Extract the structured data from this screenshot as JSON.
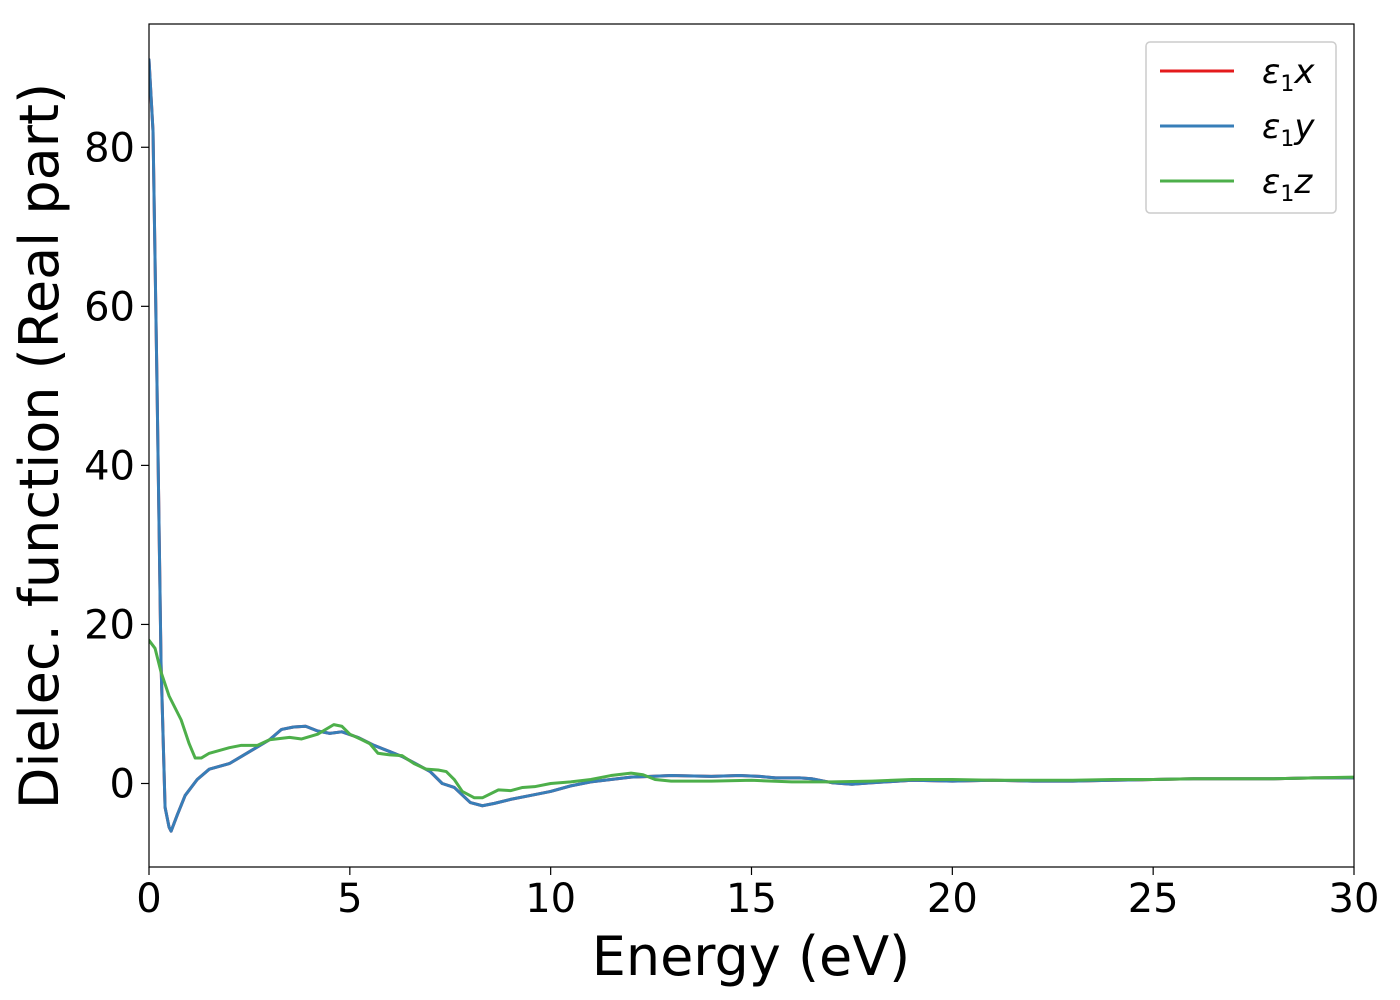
{
  "chart_data": {
    "type": "line",
    "xlabel": "Energy (eV)",
    "ylabel": "Dielec. function (Real part)",
    "xlim": [
      0,
      30
    ],
    "ylim": [
      -10.5,
      95.5
    ],
    "xticks": [
      0,
      5,
      10,
      15,
      20,
      25,
      30
    ],
    "yticks": [
      0,
      20,
      40,
      60,
      80
    ],
    "grid": false,
    "legend_position": "top-right",
    "series": [
      {
        "name": "ε1x",
        "legend": {
          "base": "ε",
          "sub": "1",
          "axis": "x"
        },
        "color": "#e41a1c",
        "points": [
          [
            0,
            91
          ],
          [
            0.1,
            82
          ],
          [
            0.2,
            50
          ],
          [
            0.3,
            15
          ],
          [
            0.4,
            -3
          ],
          [
            0.5,
            -5.5
          ],
          [
            0.55,
            -6
          ],
          [
            0.7,
            -4
          ],
          [
            0.9,
            -1.5
          ],
          [
            1.2,
            0.5
          ],
          [
            1.5,
            1.8
          ],
          [
            2.0,
            2.5
          ],
          [
            2.5,
            4
          ],
          [
            3.0,
            5.5
          ],
          [
            3.3,
            6.8
          ],
          [
            3.6,
            7.1
          ],
          [
            3.9,
            7.2
          ],
          [
            4.2,
            6.6
          ],
          [
            4.5,
            6.3
          ],
          [
            4.8,
            6.5
          ],
          [
            5.2,
            5.8
          ],
          [
            5.6,
            4.8
          ],
          [
            6.0,
            4.0
          ],
          [
            6.3,
            3.4
          ],
          [
            6.6,
            2.6
          ],
          [
            7.0,
            1.5
          ],
          [
            7.3,
            0
          ],
          [
            7.6,
            -0.5
          ],
          [
            8.0,
            -2.4
          ],
          [
            8.3,
            -2.8
          ],
          [
            8.6,
            -2.5
          ],
          [
            9.0,
            -2.0
          ],
          [
            9.5,
            -1.5
          ],
          [
            10,
            -1.0
          ],
          [
            10.5,
            -0.3
          ],
          [
            11,
            0.2
          ],
          [
            11.5,
            0.5
          ],
          [
            12,
            0.8
          ],
          [
            12.5,
            0.9
          ],
          [
            13,
            1.0
          ],
          [
            14,
            0.9
          ],
          [
            14.7,
            1.0
          ],
          [
            15.2,
            0.9
          ],
          [
            15.6,
            0.7
          ],
          [
            16.2,
            0.7
          ],
          [
            16.5,
            0.6
          ],
          [
            17.0,
            0.1
          ],
          [
            17.5,
            -0.1
          ],
          [
            18,
            0.1
          ],
          [
            19,
            0.4
          ],
          [
            20,
            0.3
          ],
          [
            21,
            0.4
          ],
          [
            22,
            0.3
          ],
          [
            23,
            0.3
          ],
          [
            24,
            0.4
          ],
          [
            25,
            0.5
          ],
          [
            26,
            0.6
          ],
          [
            27,
            0.6
          ],
          [
            28,
            0.6
          ],
          [
            29,
            0.7
          ],
          [
            30,
            0.7
          ]
        ]
      },
      {
        "name": "ε1y",
        "legend": {
          "base": "ε",
          "sub": "1",
          "axis": "y"
        },
        "color": "#377eb8",
        "points": [
          [
            0,
            91
          ],
          [
            0.1,
            82
          ],
          [
            0.2,
            50
          ],
          [
            0.3,
            15
          ],
          [
            0.4,
            -3
          ],
          [
            0.5,
            -5.5
          ],
          [
            0.55,
            -6
          ],
          [
            0.7,
            -4
          ],
          [
            0.9,
            -1.5
          ],
          [
            1.2,
            0.5
          ],
          [
            1.5,
            1.8
          ],
          [
            2.0,
            2.5
          ],
          [
            2.5,
            4
          ],
          [
            3.0,
            5.5
          ],
          [
            3.3,
            6.8
          ],
          [
            3.6,
            7.1
          ],
          [
            3.9,
            7.2
          ],
          [
            4.2,
            6.6
          ],
          [
            4.5,
            6.3
          ],
          [
            4.8,
            6.5
          ],
          [
            5.2,
            5.8
          ],
          [
            5.6,
            4.8
          ],
          [
            6.0,
            4.0
          ],
          [
            6.3,
            3.4
          ],
          [
            6.6,
            2.6
          ],
          [
            7.0,
            1.5
          ],
          [
            7.3,
            0
          ],
          [
            7.6,
            -0.5
          ],
          [
            8.0,
            -2.4
          ],
          [
            8.3,
            -2.8
          ],
          [
            8.6,
            -2.5
          ],
          [
            9.0,
            -2.0
          ],
          [
            9.5,
            -1.5
          ],
          [
            10,
            -1.0
          ],
          [
            10.5,
            -0.3
          ],
          [
            11,
            0.2
          ],
          [
            11.5,
            0.5
          ],
          [
            12,
            0.8
          ],
          [
            12.5,
            0.9
          ],
          [
            13,
            1.0
          ],
          [
            14,
            0.9
          ],
          [
            14.7,
            1.0
          ],
          [
            15.2,
            0.9
          ],
          [
            15.6,
            0.7
          ],
          [
            16.2,
            0.7
          ],
          [
            16.5,
            0.6
          ],
          [
            17.0,
            0.1
          ],
          [
            17.5,
            -0.1
          ],
          [
            18,
            0.1
          ],
          [
            19,
            0.4
          ],
          [
            20,
            0.3
          ],
          [
            21,
            0.4
          ],
          [
            22,
            0.3
          ],
          [
            23,
            0.3
          ],
          [
            24,
            0.4
          ],
          [
            25,
            0.5
          ],
          [
            26,
            0.6
          ],
          [
            27,
            0.6
          ],
          [
            28,
            0.6
          ],
          [
            29,
            0.7
          ],
          [
            30,
            0.7
          ]
        ]
      },
      {
        "name": "ε1z",
        "legend": {
          "base": "ε",
          "sub": "1",
          "axis": "z"
        },
        "color": "#4daf4a",
        "points": [
          [
            0,
            18
          ],
          [
            0.15,
            17
          ],
          [
            0.3,
            14
          ],
          [
            0.5,
            11
          ],
          [
            0.8,
            8
          ],
          [
            1.0,
            5
          ],
          [
            1.15,
            3.2
          ],
          [
            1.3,
            3.2
          ],
          [
            1.5,
            3.8
          ],
          [
            2.0,
            4.5
          ],
          [
            2.3,
            4.8
          ],
          [
            2.7,
            4.8
          ],
          [
            3.0,
            5.5
          ],
          [
            3.5,
            5.8
          ],
          [
            3.8,
            5.6
          ],
          [
            4.2,
            6.2
          ],
          [
            4.6,
            7.4
          ],
          [
            4.8,
            7.2
          ],
          [
            5.0,
            6.2
          ],
          [
            5.3,
            5.5
          ],
          [
            5.5,
            5.0
          ],
          [
            5.7,
            3.8
          ],
          [
            6.0,
            3.6
          ],
          [
            6.3,
            3.5
          ],
          [
            6.6,
            2.5
          ],
          [
            6.9,
            1.8
          ],
          [
            7.2,
            1.7
          ],
          [
            7.4,
            1.5
          ],
          [
            7.6,
            0.5
          ],
          [
            7.8,
            -1.0
          ],
          [
            8.1,
            -1.8
          ],
          [
            8.3,
            -1.8
          ],
          [
            8.7,
            -0.8
          ],
          [
            9.0,
            -0.9
          ],
          [
            9.3,
            -0.5
          ],
          [
            9.6,
            -0.4
          ],
          [
            10,
            0
          ],
          [
            10.5,
            0.2
          ],
          [
            11,
            0.5
          ],
          [
            11.5,
            1.0
          ],
          [
            12.0,
            1.3
          ],
          [
            12.3,
            1.1
          ],
          [
            12.6,
            0.5
          ],
          [
            13,
            0.3
          ],
          [
            14,
            0.3
          ],
          [
            15,
            0.4
          ],
          [
            16,
            0.2
          ],
          [
            17,
            0.2
          ],
          [
            18,
            0.3
          ],
          [
            19,
            0.5
          ],
          [
            20,
            0.5
          ],
          [
            21,
            0.4
          ],
          [
            22,
            0.4
          ],
          [
            23,
            0.4
          ],
          [
            24,
            0.5
          ],
          [
            25,
            0.5
          ],
          [
            26,
            0.6
          ],
          [
            27,
            0.6
          ],
          [
            28,
            0.6
          ],
          [
            29,
            0.7
          ],
          [
            30,
            0.8
          ]
        ]
      }
    ]
  }
}
